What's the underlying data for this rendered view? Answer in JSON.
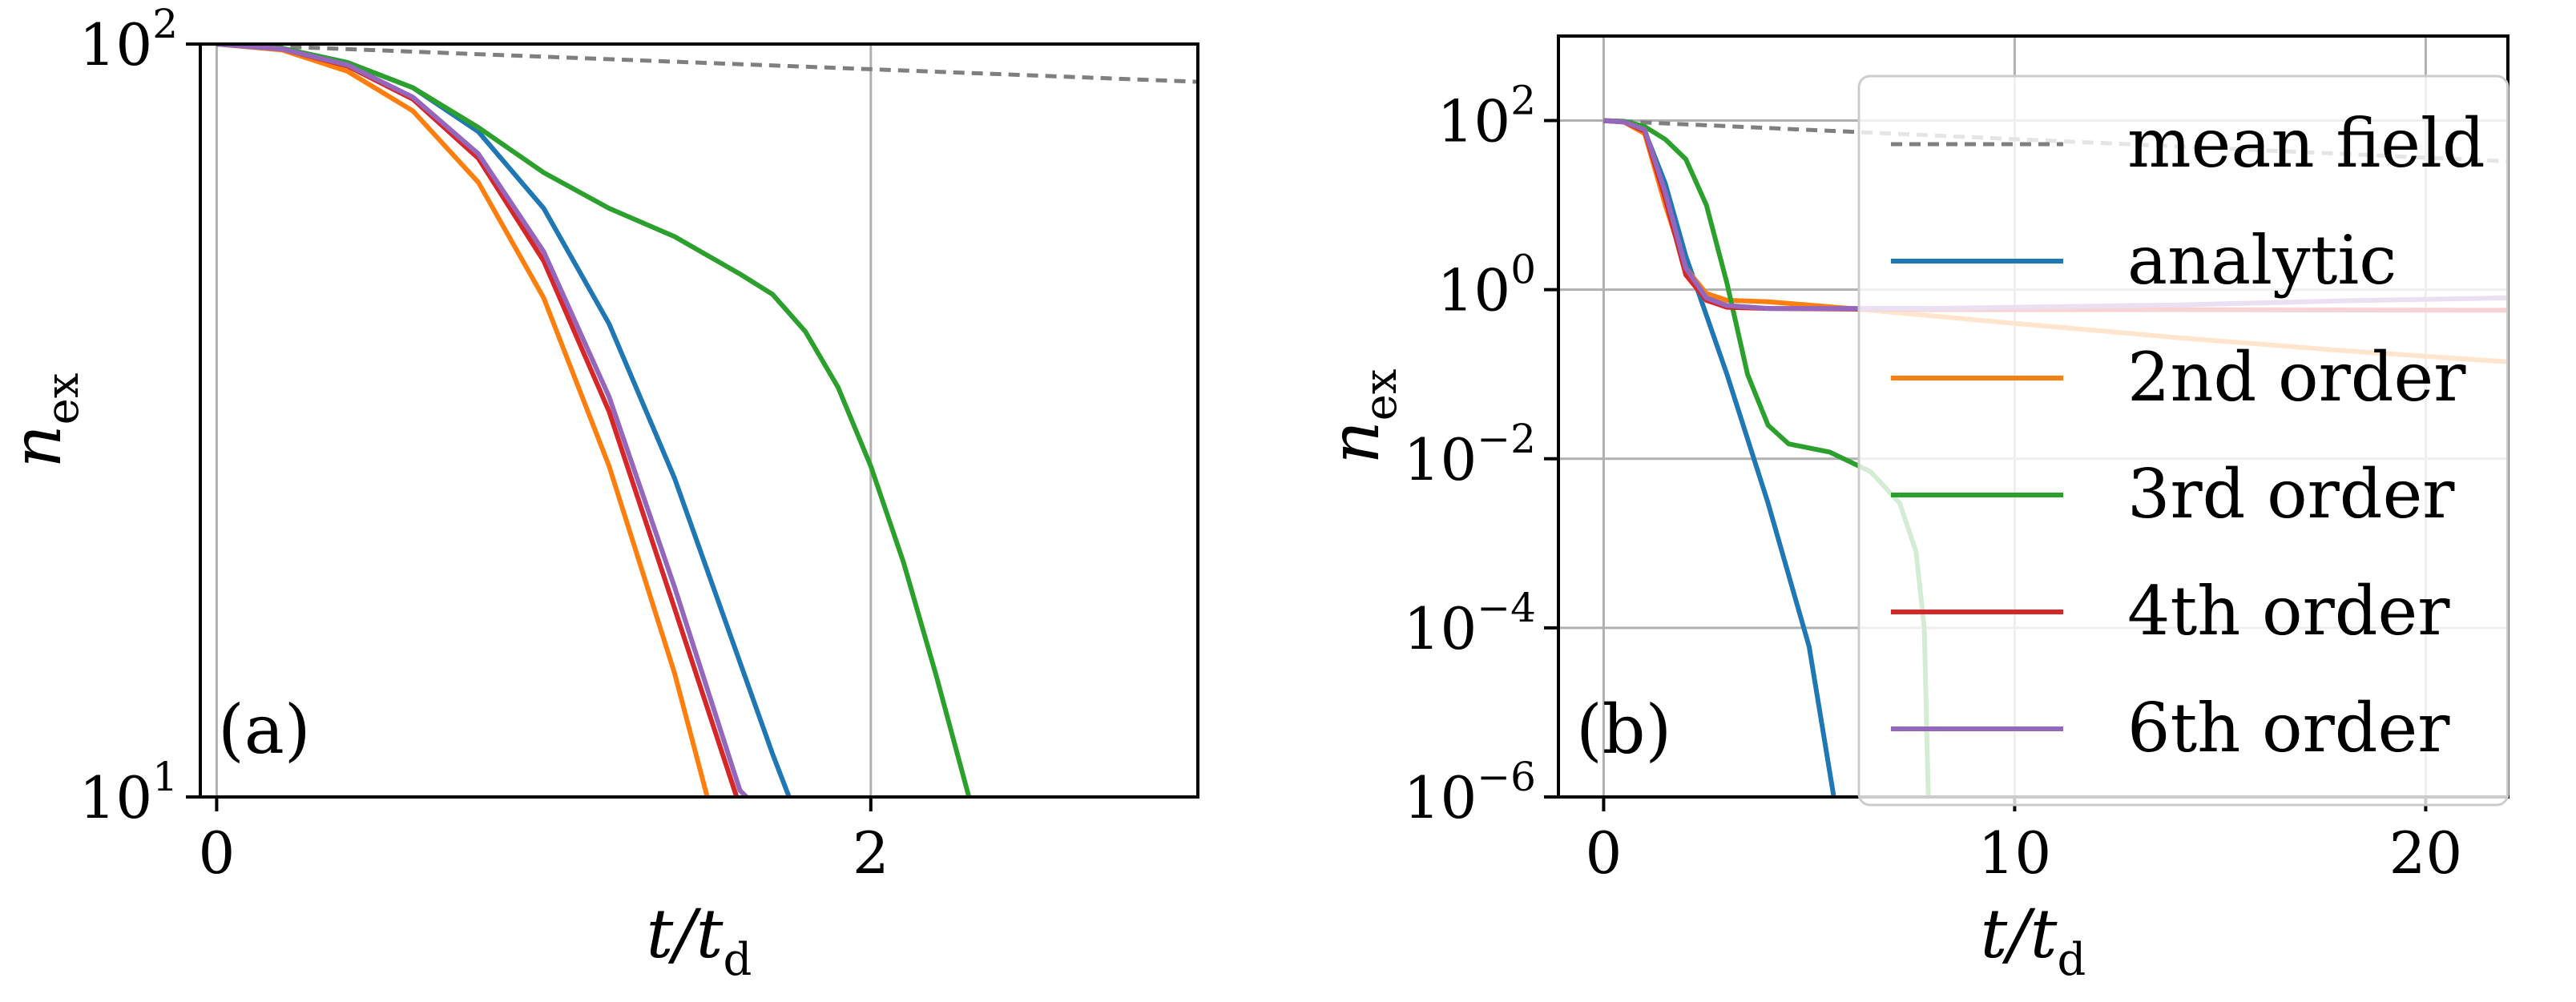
{
  "chart_data": [
    {
      "panel": "(a)",
      "type": "line",
      "xlabel": "t/t",
      "xlabel_sub": "d",
      "ylabel": "n",
      "ylabel_sub": "ex",
      "xlim": [
        -0.05,
        3.0
      ],
      "ylim": [
        10,
        100
      ],
      "yscale": "log",
      "grid": true,
      "xticks": [
        {
          "value": 0,
          "label": "0"
        },
        {
          "value": 2,
          "label": "2"
        }
      ],
      "yticks": [
        {
          "value": 10,
          "base": "10",
          "exp": "1"
        },
        {
          "value": 100,
          "base": "10",
          "exp": "2"
        }
      ],
      "series": [
        {
          "name": "mean field",
          "color": "#7f7f7f",
          "dash": true,
          "points": [
            [
              0,
              100
            ],
            [
              1,
              96.2
            ],
            [
              2,
              92.6
            ],
            [
              3,
              89.1
            ]
          ]
        },
        {
          "name": "analytic",
          "color": "#1f77b4",
          "points": [
            [
              0,
              100
            ],
            [
              0.2,
              98.7
            ],
            [
              0.4,
              94.5
            ],
            [
              0.6,
              87.5
            ],
            [
              0.8,
              76.5
            ],
            [
              1.0,
              60.5
            ],
            [
              1.2,
              42.5
            ],
            [
              1.4,
              26.5
            ],
            [
              1.6,
              15.1
            ],
            [
              1.7,
              11.4
            ],
            [
              1.75,
              10.0
            ]
          ]
        },
        {
          "name": "2nd order",
          "color": "#ff7f0e",
          "points": [
            [
              0,
              100
            ],
            [
              0.2,
              98.2
            ],
            [
              0.4,
              92.0
            ],
            [
              0.6,
              81.5
            ],
            [
              0.8,
              65.5
            ],
            [
              1.0,
              46.0
            ],
            [
              1.2,
              27.5
            ],
            [
              1.4,
              14.6
            ],
            [
              1.5,
              10.0
            ]
          ]
        },
        {
          "name": "3rd order",
          "color": "#2ca02c",
          "points": [
            [
              0,
              100
            ],
            [
              0.2,
              98.7
            ],
            [
              0.4,
              94.5
            ],
            [
              0.6,
              87.5
            ],
            [
              0.8,
              77.5
            ],
            [
              1.0,
              67.5
            ],
            [
              1.2,
              60.5
            ],
            [
              1.4,
              55.5
            ],
            [
              1.6,
              49.5
            ],
            [
              1.7,
              46.5
            ],
            [
              1.8,
              41.5
            ],
            [
              1.9,
              35.0
            ],
            [
              2.0,
              27.5
            ],
            [
              2.1,
              20.5
            ],
            [
              2.2,
              14.5
            ],
            [
              2.3,
              10.0
            ]
          ]
        },
        {
          "name": "4th order",
          "color": "#d62728",
          "points": [
            [
              0,
              100
            ],
            [
              0.2,
              98.5
            ],
            [
              0.4,
              93.5
            ],
            [
              0.6,
              84.5
            ],
            [
              0.8,
              70.5
            ],
            [
              1.0,
              51.5
            ],
            [
              1.2,
              32.5
            ],
            [
              1.4,
              17.8
            ],
            [
              1.59,
              10.0
            ]
          ]
        },
        {
          "name": "6th order",
          "color": "#9467bd",
          "points": [
            [
              0,
              100
            ],
            [
              0.2,
              98.5
            ],
            [
              0.4,
              93.8
            ],
            [
              0.6,
              85.0
            ],
            [
              0.8,
              71.5
            ],
            [
              1.0,
              53.0
            ],
            [
              1.2,
              34.0
            ],
            [
              1.4,
              19.0
            ],
            [
              1.6,
              10.2
            ],
            [
              1.62,
              10.0
            ]
          ]
        }
      ]
    },
    {
      "panel": "(b)",
      "type": "line",
      "xlabel": "t/t",
      "xlabel_sub": "d",
      "ylabel": "n",
      "ylabel_sub": "ex",
      "xlim": [
        -1.1,
        22.0
      ],
      "ylim": [
        1e-06,
        1000
      ],
      "yscale": "log",
      "grid": true,
      "xticks": [
        {
          "value": 0,
          "label": "0"
        },
        {
          "value": 10,
          "label": "10"
        },
        {
          "value": 20,
          "label": "20"
        }
      ],
      "yticks": [
        {
          "value": 100,
          "base": "10",
          "exp": "2"
        },
        {
          "value": 1,
          "base": "10",
          "exp": "0"
        },
        {
          "value": 0.01,
          "base": "10",
          "exp": "−2"
        },
        {
          "value": 0.0001,
          "base": "10",
          "exp": "−4"
        },
        {
          "value": 1e-06,
          "base": "10",
          "exp": "−6"
        }
      ],
      "legend": {
        "location": "upper right"
      },
      "series": [
        {
          "name": "mean field",
          "color": "#7f7f7f",
          "dash": true,
          "points": [
            [
              0,
              100
            ],
            [
              22,
              33
            ]
          ]
        },
        {
          "name": "analytic",
          "color": "#1f77b4",
          "points": [
            [
              0,
              100
            ],
            [
              0.5,
              98
            ],
            [
              0.8,
              90
            ],
            [
              1.0,
              75
            ],
            [
              1.5,
              18
            ],
            [
              2.0,
              2.5
            ],
            [
              3.0,
              0.1
            ],
            [
              4.0,
              0.003
            ],
            [
              5.0,
              6e-05
            ],
            [
              5.6,
              1e-06
            ]
          ]
        },
        {
          "name": "2nd order",
          "color": "#ff7f0e",
          "points": [
            [
              0,
              100
            ],
            [
              0.5,
              96
            ],
            [
              1.0,
              70
            ],
            [
              1.5,
              10
            ],
            [
              2.0,
              1.8
            ],
            [
              2.5,
              0.9
            ],
            [
              3.0,
              0.75
            ],
            [
              4.0,
              0.72
            ],
            [
              6.0,
              0.6
            ],
            [
              10.0,
              0.4
            ],
            [
              14.0,
              0.27
            ],
            [
              18.0,
              0.19
            ],
            [
              22.0,
              0.14
            ]
          ]
        },
        {
          "name": "3rd order",
          "color": "#2ca02c",
          "points": [
            [
              0,
              100
            ],
            [
              0.5,
              98
            ],
            [
              1.0,
              85
            ],
            [
              1.5,
              60
            ],
            [
              2.0,
              35
            ],
            [
              2.5,
              10
            ],
            [
              3.0,
              1.2
            ],
            [
              3.5,
              0.1
            ],
            [
              4.0,
              0.025
            ],
            [
              4.5,
              0.015
            ],
            [
              5.5,
              0.012
            ],
            [
              6.5,
              0.007
            ],
            [
              7.2,
              0.003
            ],
            [
              7.6,
              0.0008
            ],
            [
              7.8,
              0.0001
            ],
            [
              7.9,
              1e-06
            ]
          ]
        },
        {
          "name": "4th order",
          "color": "#d62728",
          "points": [
            [
              0,
              100
            ],
            [
              0.5,
              96
            ],
            [
              1.0,
              75
            ],
            [
              1.5,
              12
            ],
            [
              2.0,
              1.5
            ],
            [
              2.5,
              0.75
            ],
            [
              3.0,
              0.62
            ],
            [
              4.0,
              0.6
            ],
            [
              8.0,
              0.58
            ],
            [
              14.0,
              0.58
            ],
            [
              22.0,
              0.57
            ]
          ]
        },
        {
          "name": "6th order",
          "color": "#9467bd",
          "points": [
            [
              0,
              100
            ],
            [
              0.5,
              96
            ],
            [
              1.0,
              78
            ],
            [
              1.5,
              14
            ],
            [
              2.0,
              1.8
            ],
            [
              2.5,
              0.8
            ],
            [
              3.0,
              0.65
            ],
            [
              4.0,
              0.6
            ],
            [
              8.0,
              0.6
            ],
            [
              14.0,
              0.66
            ],
            [
              18.0,
              0.74
            ],
            [
              22.0,
              0.8
            ]
          ]
        }
      ]
    }
  ]
}
